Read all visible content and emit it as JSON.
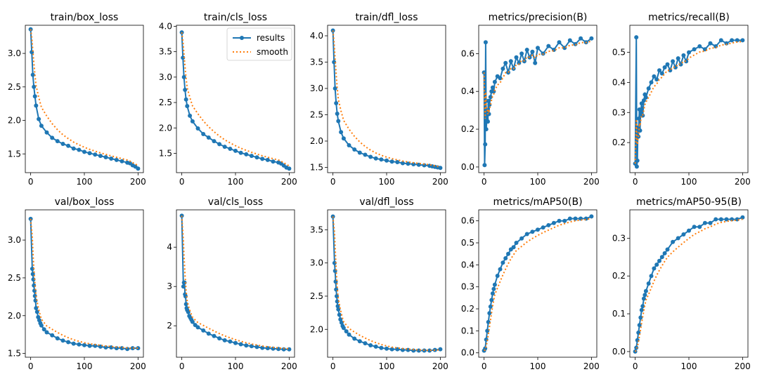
{
  "colors": {
    "results": "#1f77b4",
    "smooth": "#ff7f0e",
    "axes": "#000000"
  },
  "legend": {
    "results_label": "results",
    "smooth_label": "smooth",
    "placement": "top-right of train/cls_loss"
  },
  "chart_data": [
    {
      "type": "line",
      "title": "train/box_loss",
      "xlim": [
        -10,
        210
      ],
      "ylim": [
        1.22,
        3.42
      ],
      "xticks": [
        0,
        100,
        200
      ],
      "yticks": [
        1.5,
        2.0,
        2.5,
        3.0
      ],
      "series": [
        {
          "name": "results",
          "x": [
            0,
            2,
            4,
            6,
            8,
            10,
            15,
            20,
            30,
            40,
            50,
            60,
            70,
            80,
            90,
            100,
            110,
            120,
            130,
            140,
            150,
            160,
            170,
            180,
            185,
            190,
            195,
            200
          ],
          "y": [
            3.36,
            3.02,
            2.68,
            2.5,
            2.36,
            2.22,
            2.02,
            1.92,
            1.82,
            1.74,
            1.69,
            1.65,
            1.62,
            1.58,
            1.56,
            1.53,
            1.51,
            1.49,
            1.47,
            1.45,
            1.43,
            1.41,
            1.39,
            1.37,
            1.36,
            1.33,
            1.31,
            1.28
          ]
        }
      ]
    },
    {
      "type": "line",
      "title": "train/cls_loss",
      "xlim": [
        -10,
        210
      ],
      "ylim": [
        1.12,
        4.02
      ],
      "xticks": [
        0,
        100,
        200
      ],
      "yticks": [
        1.5,
        2.0,
        2.5,
        3.0,
        3.5,
        4.0
      ],
      "legend": true,
      "series": [
        {
          "name": "results",
          "x": [
            0,
            2,
            4,
            6,
            8,
            10,
            15,
            20,
            30,
            40,
            50,
            60,
            70,
            80,
            90,
            100,
            110,
            120,
            130,
            140,
            150,
            160,
            170,
            180,
            185,
            190,
            195,
            200
          ],
          "y": [
            3.88,
            3.38,
            3.0,
            2.75,
            2.56,
            2.43,
            2.24,
            2.13,
            1.99,
            1.88,
            1.81,
            1.74,
            1.68,
            1.63,
            1.59,
            1.55,
            1.51,
            1.48,
            1.45,
            1.42,
            1.39,
            1.37,
            1.34,
            1.32,
            1.3,
            1.26,
            1.22,
            1.2
          ]
        }
      ]
    },
    {
      "type": "line",
      "title": "train/dfl_loss",
      "xlim": [
        -10,
        210
      ],
      "ylim": [
        1.4,
        4.2
      ],
      "xticks": [
        0,
        100,
        200
      ],
      "yticks": [
        1.5,
        2.0,
        2.5,
        3.0,
        3.5,
        4.0
      ],
      "series": [
        {
          "name": "results",
          "x": [
            0,
            2,
            4,
            6,
            8,
            10,
            15,
            20,
            30,
            40,
            50,
            60,
            70,
            80,
            90,
            100,
            110,
            120,
            130,
            140,
            150,
            160,
            170,
            180,
            185,
            190,
            195,
            200
          ],
          "y": [
            4.1,
            3.5,
            3.0,
            2.72,
            2.52,
            2.38,
            2.17,
            2.05,
            1.92,
            1.84,
            1.78,
            1.74,
            1.7,
            1.67,
            1.65,
            1.63,
            1.61,
            1.6,
            1.58,
            1.57,
            1.56,
            1.55,
            1.54,
            1.53,
            1.52,
            1.51,
            1.5,
            1.49
          ]
        }
      ]
    },
    {
      "type": "line",
      "title": "metrics/precision(B)",
      "xlim": [
        -10,
        210
      ],
      "ylim": [
        -0.03,
        0.75
      ],
      "xticks": [
        0,
        100,
        200
      ],
      "yticks": [
        0.0,
        0.2,
        0.4,
        0.6
      ],
      "series": [
        {
          "name": "results",
          "x": [
            0,
            1,
            2,
            3,
            4,
            5,
            6,
            7,
            8,
            9,
            10,
            12,
            14,
            16,
            18,
            20,
            25,
            30,
            35,
            40,
            45,
            50,
            55,
            60,
            65,
            70,
            75,
            80,
            85,
            90,
            95,
            100,
            110,
            120,
            130,
            140,
            150,
            160,
            170,
            180,
            190,
            200
          ],
          "y": [
            0.5,
            0.01,
            0.12,
            0.66,
            0.2,
            0.25,
            0.3,
            0.24,
            0.35,
            0.28,
            0.33,
            0.37,
            0.4,
            0.42,
            0.4,
            0.45,
            0.48,
            0.47,
            0.52,
            0.55,
            0.5,
            0.56,
            0.52,
            0.58,
            0.55,
            0.6,
            0.56,
            0.62,
            0.58,
            0.61,
            0.55,
            0.63,
            0.6,
            0.64,
            0.62,
            0.66,
            0.63,
            0.67,
            0.65,
            0.68,
            0.66,
            0.68
          ]
        }
      ]
    },
    {
      "type": "line",
      "title": "metrics/recall(B)",
      "xlim": [
        -10,
        210
      ],
      "ylim": [
        0.1,
        0.59
      ],
      "xticks": [
        0,
        100,
        200
      ],
      "yticks": [
        0.2,
        0.3,
        0.4,
        0.5
      ],
      "series": [
        {
          "name": "results",
          "x": [
            0,
            2,
            3,
            4,
            5,
            6,
            7,
            8,
            9,
            10,
            12,
            14,
            16,
            18,
            20,
            25,
            30,
            35,
            40,
            45,
            50,
            55,
            60,
            65,
            70,
            75,
            80,
            85,
            90,
            95,
            100,
            110,
            120,
            130,
            140,
            150,
            160,
            170,
            180,
            190,
            200
          ],
          "y": [
            0.13,
            0.55,
            0.12,
            0.14,
            0.25,
            0.22,
            0.28,
            0.31,
            0.24,
            0.3,
            0.33,
            0.29,
            0.34,
            0.36,
            0.35,
            0.38,
            0.4,
            0.42,
            0.41,
            0.44,
            0.43,
            0.45,
            0.46,
            0.44,
            0.47,
            0.45,
            0.48,
            0.46,
            0.49,
            0.47,
            0.5,
            0.51,
            0.52,
            0.51,
            0.53,
            0.52,
            0.54,
            0.53,
            0.54,
            0.54,
            0.54
          ]
        }
      ]
    },
    {
      "type": "line",
      "title": "val/box_loss",
      "xlim": [
        -10,
        210
      ],
      "ylim": [
        1.45,
        3.4
      ],
      "xticks": [
        0,
        100,
        200
      ],
      "yticks": [
        1.5,
        2.0,
        2.5,
        3.0
      ],
      "series": [
        {
          "name": "results",
          "x": [
            0,
            3,
            4,
            5,
            6,
            7,
            8,
            9,
            10,
            12,
            14,
            16,
            18,
            20,
            25,
            30,
            40,
            50,
            60,
            70,
            80,
            90,
            100,
            110,
            120,
            130,
            140,
            150,
            160,
            170,
            180,
            190,
            200
          ],
          "y": [
            3.28,
            2.62,
            2.55,
            2.48,
            2.4,
            2.33,
            2.26,
            2.2,
            2.1,
            2.05,
            1.98,
            1.94,
            1.9,
            1.87,
            1.82,
            1.78,
            1.74,
            1.7,
            1.67,
            1.65,
            1.63,
            1.62,
            1.61,
            1.6,
            1.6,
            1.59,
            1.58,
            1.58,
            1.57,
            1.57,
            1.56,
            1.57,
            1.57
          ]
        }
      ]
    },
    {
      "type": "line",
      "title": "val/cls_loss",
      "xlim": [
        -10,
        210
      ],
      "ylim": [
        1.2,
        4.95
      ],
      "xticks": [
        0,
        100,
        200
      ],
      "yticks": [
        2,
        3,
        4
      ],
      "series": [
        {
          "name": "results",
          "x": [
            0,
            3,
            4,
            5,
            6,
            7,
            8,
            9,
            10,
            12,
            14,
            16,
            18,
            20,
            25,
            30,
            40,
            50,
            60,
            70,
            80,
            90,
            100,
            110,
            120,
            130,
            140,
            150,
            160,
            170,
            180,
            190,
            200
          ],
          "y": [
            4.8,
            3.0,
            3.1,
            3.1,
            2.8,
            2.75,
            2.55,
            2.45,
            2.4,
            2.35,
            2.25,
            2.2,
            2.15,
            2.1,
            2.02,
            1.96,
            1.88,
            1.8,
            1.74,
            1.68,
            1.63,
            1.6,
            1.56,
            1.53,
            1.5,
            1.48,
            1.46,
            1.44,
            1.43,
            1.42,
            1.41,
            1.4,
            1.4
          ]
        }
      ]
    },
    {
      "type": "line",
      "title": "val/dfl_loss",
      "xlim": [
        -10,
        210
      ],
      "ylim": [
        1.58,
        3.8
      ],
      "xticks": [
        0,
        100,
        200
      ],
      "yticks": [
        2.0,
        2.5,
        3.0,
        3.5
      ],
      "series": [
        {
          "name": "results",
          "x": [
            0,
            3,
            4,
            5,
            6,
            7,
            8,
            9,
            10,
            12,
            14,
            16,
            18,
            20,
            25,
            30,
            40,
            50,
            60,
            70,
            80,
            90,
            100,
            110,
            120,
            130,
            140,
            150,
            160,
            170,
            180,
            190,
            200
          ],
          "y": [
            3.7,
            3.0,
            2.88,
            2.72,
            2.6,
            2.5,
            2.42,
            2.35,
            2.3,
            2.22,
            2.15,
            2.1,
            2.05,
            2.02,
            1.97,
            1.92,
            1.86,
            1.82,
            1.79,
            1.76,
            1.74,
            1.72,
            1.71,
            1.7,
            1.7,
            1.69,
            1.69,
            1.68,
            1.68,
            1.68,
            1.68,
            1.69,
            1.7
          ]
        }
      ]
    },
    {
      "type": "line",
      "title": "metrics/mAP50(B)",
      "xlim": [
        -10,
        210
      ],
      "ylim": [
        -0.02,
        0.65
      ],
      "xticks": [
        0,
        100,
        200
      ],
      "yticks": [
        0.0,
        0.1,
        0.2,
        0.3,
        0.4,
        0.5,
        0.6
      ],
      "series": [
        {
          "name": "results",
          "x": [
            0,
            2,
            4,
            6,
            8,
            10,
            12,
            14,
            16,
            18,
            20,
            25,
            30,
            35,
            40,
            45,
            50,
            55,
            60,
            70,
            80,
            90,
            100,
            110,
            120,
            130,
            140,
            150,
            160,
            170,
            180,
            190,
            200
          ],
          "y": [
            0.01,
            0.02,
            0.06,
            0.1,
            0.14,
            0.18,
            0.21,
            0.24,
            0.27,
            0.29,
            0.31,
            0.35,
            0.38,
            0.41,
            0.43,
            0.45,
            0.47,
            0.48,
            0.5,
            0.52,
            0.54,
            0.55,
            0.56,
            0.57,
            0.58,
            0.59,
            0.6,
            0.6,
            0.61,
            0.61,
            0.61,
            0.61,
            0.62
          ]
        }
      ]
    },
    {
      "type": "line",
      "title": "metrics/mAP50-95(B)",
      "xlim": [
        -10,
        210
      ],
      "ylim": [
        -0.015,
        0.375
      ],
      "xticks": [
        0,
        100,
        200
      ],
      "yticks": [
        0.0,
        0.1,
        0.2,
        0.3
      ],
      "series": [
        {
          "name": "results",
          "x": [
            0,
            2,
            4,
            6,
            8,
            10,
            12,
            14,
            16,
            18,
            20,
            25,
            30,
            35,
            40,
            45,
            50,
            55,
            60,
            70,
            80,
            90,
            100,
            110,
            120,
            130,
            140,
            150,
            160,
            170,
            180,
            190,
            200
          ],
          "y": [
            0.0,
            0.01,
            0.03,
            0.05,
            0.07,
            0.09,
            0.11,
            0.12,
            0.14,
            0.15,
            0.16,
            0.18,
            0.2,
            0.22,
            0.23,
            0.24,
            0.25,
            0.26,
            0.27,
            0.29,
            0.3,
            0.31,
            0.32,
            0.33,
            0.33,
            0.34,
            0.34,
            0.35,
            0.35,
            0.35,
            0.35,
            0.35,
            0.355
          ]
        }
      ]
    }
  ]
}
